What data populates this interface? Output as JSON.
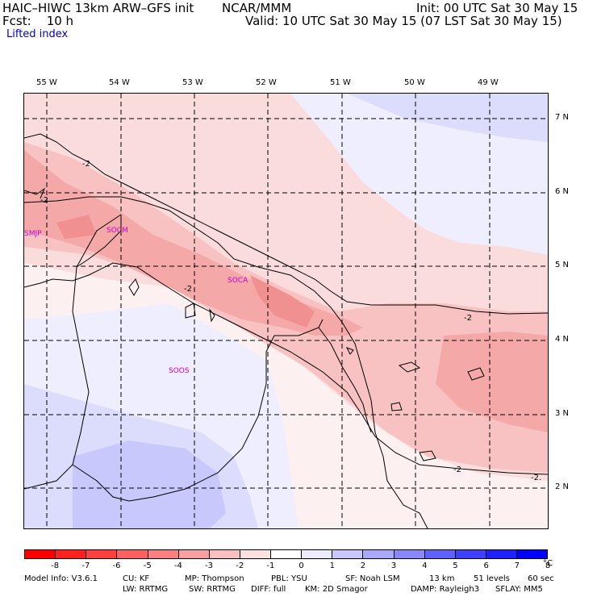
{
  "header": {
    "model": "HAIC–HIWC 13km ARW–GFS init",
    "org": "NCAR/MMM",
    "init": "Init: 00 UTC Sat 30 May 15",
    "fcst": "Fcst:    10 h",
    "valid": "Valid: 10 UTC Sat 30 May 15 (07 LST Sat 30 May 15)",
    "field": "Lifted index"
  },
  "map": {
    "lon_labels": [
      "55 W",
      "54 W",
      "53 W",
      "52 W",
      "51 W",
      "50 W",
      "49 W"
    ],
    "lat_labels": [
      "7 N",
      "6 N",
      "5 N",
      "4 N",
      "3 N",
      "2 N"
    ],
    "stations": [
      "SMJP",
      "SOCM",
      "SOCA",
      "SOOS"
    ],
    "contour_label": "-2",
    "contour_label_edge": "-2."
  },
  "colorbar": {
    "labels": [
      "-8",
      "-7",
      "-6",
      "-5",
      "-4",
      "-3",
      "-2",
      "-1",
      "0",
      "1",
      "2",
      "3",
      "4",
      "5",
      "6",
      "7",
      "8"
    ],
    "unit": "°C",
    "colors": [
      "#ff0000",
      "#ff2020",
      "#ff4040",
      "#ff6060",
      "#f88080",
      "#f8a0a0",
      "#f8c0c0",
      "#fde0e0",
      "#ffffff",
      "#ececfe",
      "#c8c8fc",
      "#a8a8fc",
      "#8888fc",
      "#6060fc",
      "#4040fc",
      "#2020fc",
      "#0000ff"
    ]
  },
  "footer": {
    "line1": [
      "Model Info: V3.6.1",
      "CU: KF",
      "MP: Thompson",
      "PBL: YSU",
      "SF: Noah LSM",
      "13 km",
      "51 levels",
      "60 sec"
    ],
    "line2": [
      "LW: RRTMG",
      "SW: RRTMG",
      "DIFF: full",
      "KM: 2D Smagor",
      "DAMP: Rayleigh3",
      "SFLAY: MM5"
    ]
  }
}
